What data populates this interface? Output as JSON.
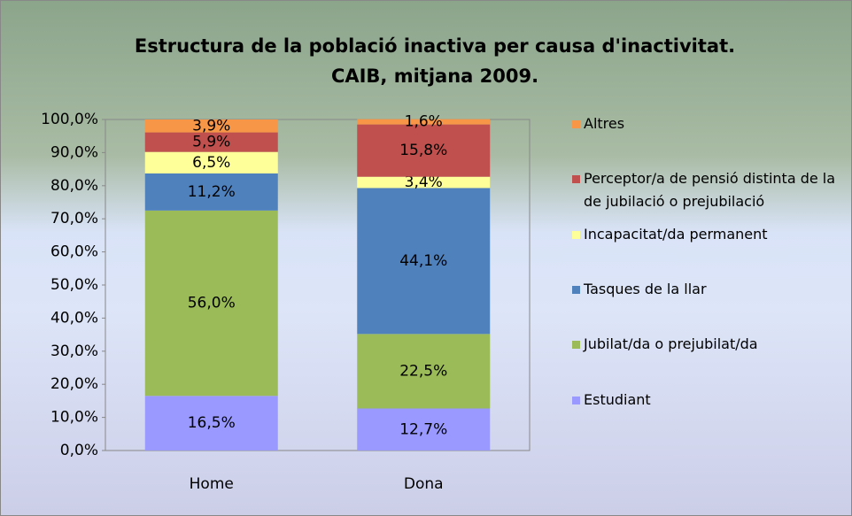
{
  "chart_data": {
    "type": "stacked_bar",
    "title": [
      "Estructura de la població inactiva per causa d'inactivitat.",
      "CAIB, mitjana 2009."
    ],
    "categories": [
      "Home",
      "Dona"
    ],
    "series": [
      {
        "name": "Estudiant",
        "color": "#9999ff",
        "values": [
          16.5,
          12.7
        ],
        "value_labels": [
          "16,5%",
          "12,7%"
        ]
      },
      {
        "name": "Jubilat/da o prejubilat/da",
        "color": "#9bbb59",
        "values": [
          56.0,
          22.5
        ],
        "value_labels": [
          "56,0%",
          "22,5%"
        ]
      },
      {
        "name": "Tasques de la llar",
        "color": "#4f81bd",
        "values": [
          11.2,
          44.1
        ],
        "value_labels": [
          "11,2%",
          "44,1%"
        ]
      },
      {
        "name": "Incapacitat/da permanent",
        "color": "#ffff99",
        "values": [
          6.5,
          3.4
        ],
        "value_labels": [
          "6,5%",
          "3,4%"
        ]
      },
      {
        "name": "Perceptor/a de pensió distinta de la de jubilació o prejubilació",
        "color": "#c0504d",
        "values": [
          5.9,
          15.8
        ],
        "value_labels": [
          "5,9%",
          "15,8%"
        ]
      },
      {
        "name": "Altres",
        "color": "#f79646",
        "values": [
          3.9,
          1.6
        ],
        "value_labels": [
          "3,9%",
          "1,6%"
        ]
      }
    ],
    "ylim": [
      0,
      100
    ],
    "yticks": [
      {
        "value": 0,
        "label": "0,0%"
      },
      {
        "value": 10,
        "label": "10,0%"
      },
      {
        "value": 20,
        "label": "20,0%"
      },
      {
        "value": 30,
        "label": "30,0%"
      },
      {
        "value": 40,
        "label": "40,0%"
      },
      {
        "value": 50,
        "label": "50,0%"
      },
      {
        "value": 60,
        "label": "60,0%"
      },
      {
        "value": 70,
        "label": "70,0%"
      },
      {
        "value": 80,
        "label": "80,0%"
      },
      {
        "value": 90,
        "label": "90,0%"
      },
      {
        "value": 100,
        "label": "100,0%"
      }
    ],
    "legend": "right"
  }
}
